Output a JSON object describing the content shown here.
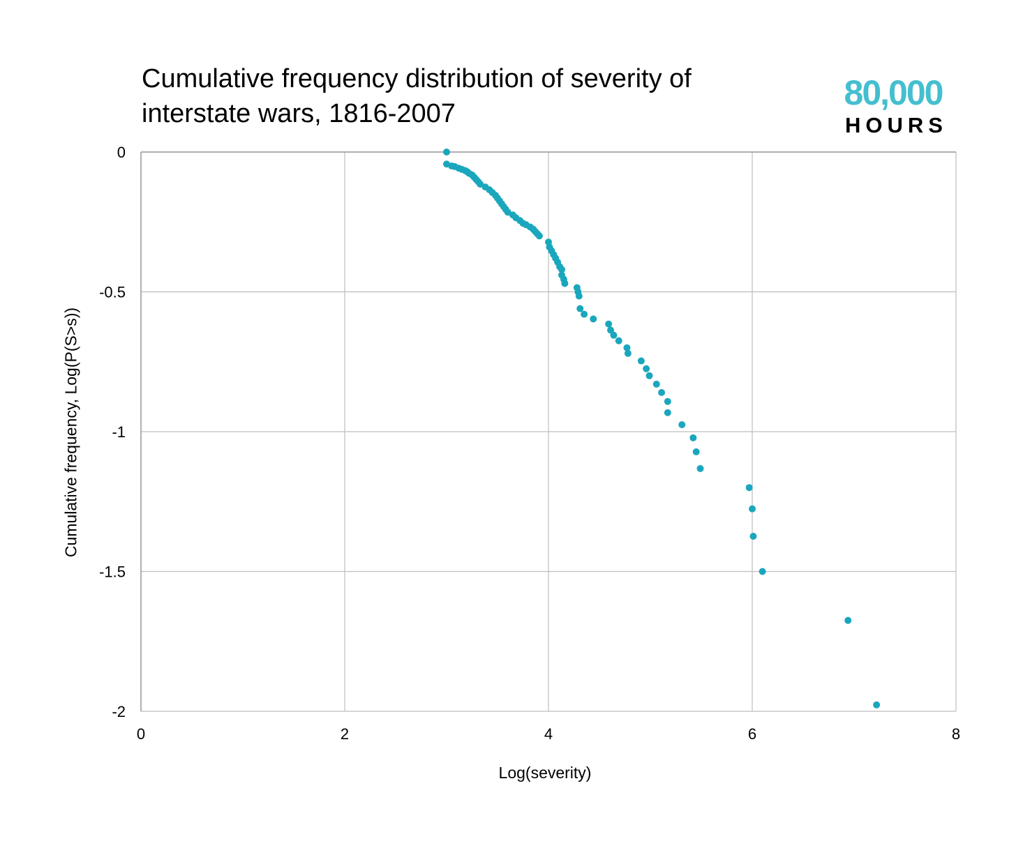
{
  "brand": {
    "number": "80,000",
    "word": "HOURS",
    "color": "#45bfcf"
  },
  "colors": {
    "point": "#1aa7bd",
    "grid": "#bdbdbd",
    "axis": "#999999"
  },
  "chart_data": {
    "type": "scatter",
    "title": "Cumulative frequency distribution of severity of\n interstate wars, 1816-2007",
    "xlabel": "Log(severity)",
    "ylabel": "Cumulative frequency, Log(P(S>s))",
    "xlim": [
      0,
      8
    ],
    "ylim": [
      -2,
      0
    ],
    "xticks": [
      0,
      2,
      4,
      6,
      8
    ],
    "yticks": [
      0,
      -0.5,
      -1,
      -1.5,
      -2
    ],
    "xtick_labels": [
      "0",
      "2",
      "4",
      "6",
      "8"
    ],
    "ytick_labels": [
      "0",
      "-0.5",
      "-1",
      "-1.5",
      "-2"
    ],
    "grid": true,
    "series": [
      {
        "points": [
          [
            3.0,
            0.0
          ],
          [
            3.0,
            -0.043
          ],
          [
            3.05,
            -0.05
          ],
          [
            3.08,
            -0.052
          ],
          [
            3.12,
            -0.058
          ],
          [
            3.15,
            -0.062
          ],
          [
            3.18,
            -0.066
          ],
          [
            3.2,
            -0.07
          ],
          [
            3.22,
            -0.076
          ],
          [
            3.25,
            -0.082
          ],
          [
            3.27,
            -0.09
          ],
          [
            3.29,
            -0.098
          ],
          [
            3.31,
            -0.106
          ],
          [
            3.33,
            -0.115
          ],
          [
            3.38,
            -0.125
          ],
          [
            3.42,
            -0.135
          ],
          [
            3.45,
            -0.145
          ],
          [
            3.48,
            -0.155
          ],
          [
            3.5,
            -0.165
          ],
          [
            3.52,
            -0.175
          ],
          [
            3.54,
            -0.185
          ],
          [
            3.56,
            -0.195
          ],
          [
            3.58,
            -0.205
          ],
          [
            3.6,
            -0.215
          ],
          [
            3.65,
            -0.225
          ],
          [
            3.68,
            -0.235
          ],
          [
            3.72,
            -0.245
          ],
          [
            3.75,
            -0.255
          ],
          [
            3.78,
            -0.26
          ],
          [
            3.82,
            -0.268
          ],
          [
            3.85,
            -0.276
          ],
          [
            3.87,
            -0.284
          ],
          [
            3.89,
            -0.292
          ],
          [
            3.91,
            -0.3
          ],
          [
            4.0,
            -0.322
          ],
          [
            4.01,
            -0.34
          ],
          [
            4.03,
            -0.353
          ],
          [
            4.05,
            -0.367
          ],
          [
            4.07,
            -0.38
          ],
          [
            4.09,
            -0.394
          ],
          [
            4.11,
            -0.41
          ],
          [
            4.13,
            -0.42
          ],
          [
            4.13,
            -0.44
          ],
          [
            4.15,
            -0.455
          ],
          [
            4.16,
            -0.47
          ],
          [
            4.28,
            -0.485
          ],
          [
            4.29,
            -0.5
          ],
          [
            4.3,
            -0.515
          ],
          [
            4.31,
            -0.56
          ],
          [
            4.35,
            -0.58
          ],
          [
            4.44,
            -0.597
          ],
          [
            4.59,
            -0.615
          ],
          [
            4.61,
            -0.637
          ],
          [
            4.64,
            -0.655
          ],
          [
            4.69,
            -0.675
          ],
          [
            4.77,
            -0.7
          ],
          [
            4.78,
            -0.72
          ],
          [
            4.91,
            -0.747
          ],
          [
            4.96,
            -0.775
          ],
          [
            4.99,
            -0.8
          ],
          [
            5.06,
            -0.83
          ],
          [
            5.11,
            -0.86
          ],
          [
            5.17,
            -0.892
          ],
          [
            5.17,
            -0.932
          ],
          [
            5.31,
            -0.975
          ],
          [
            5.42,
            -1.022
          ],
          [
            5.45,
            -1.072
          ],
          [
            5.49,
            -1.132
          ],
          [
            5.97,
            -1.2
          ],
          [
            6.0,
            -1.276
          ],
          [
            6.01,
            -1.374
          ],
          [
            6.1,
            -1.5
          ],
          [
            6.94,
            -1.675
          ],
          [
            7.22,
            -1.977
          ]
        ]
      }
    ]
  }
}
